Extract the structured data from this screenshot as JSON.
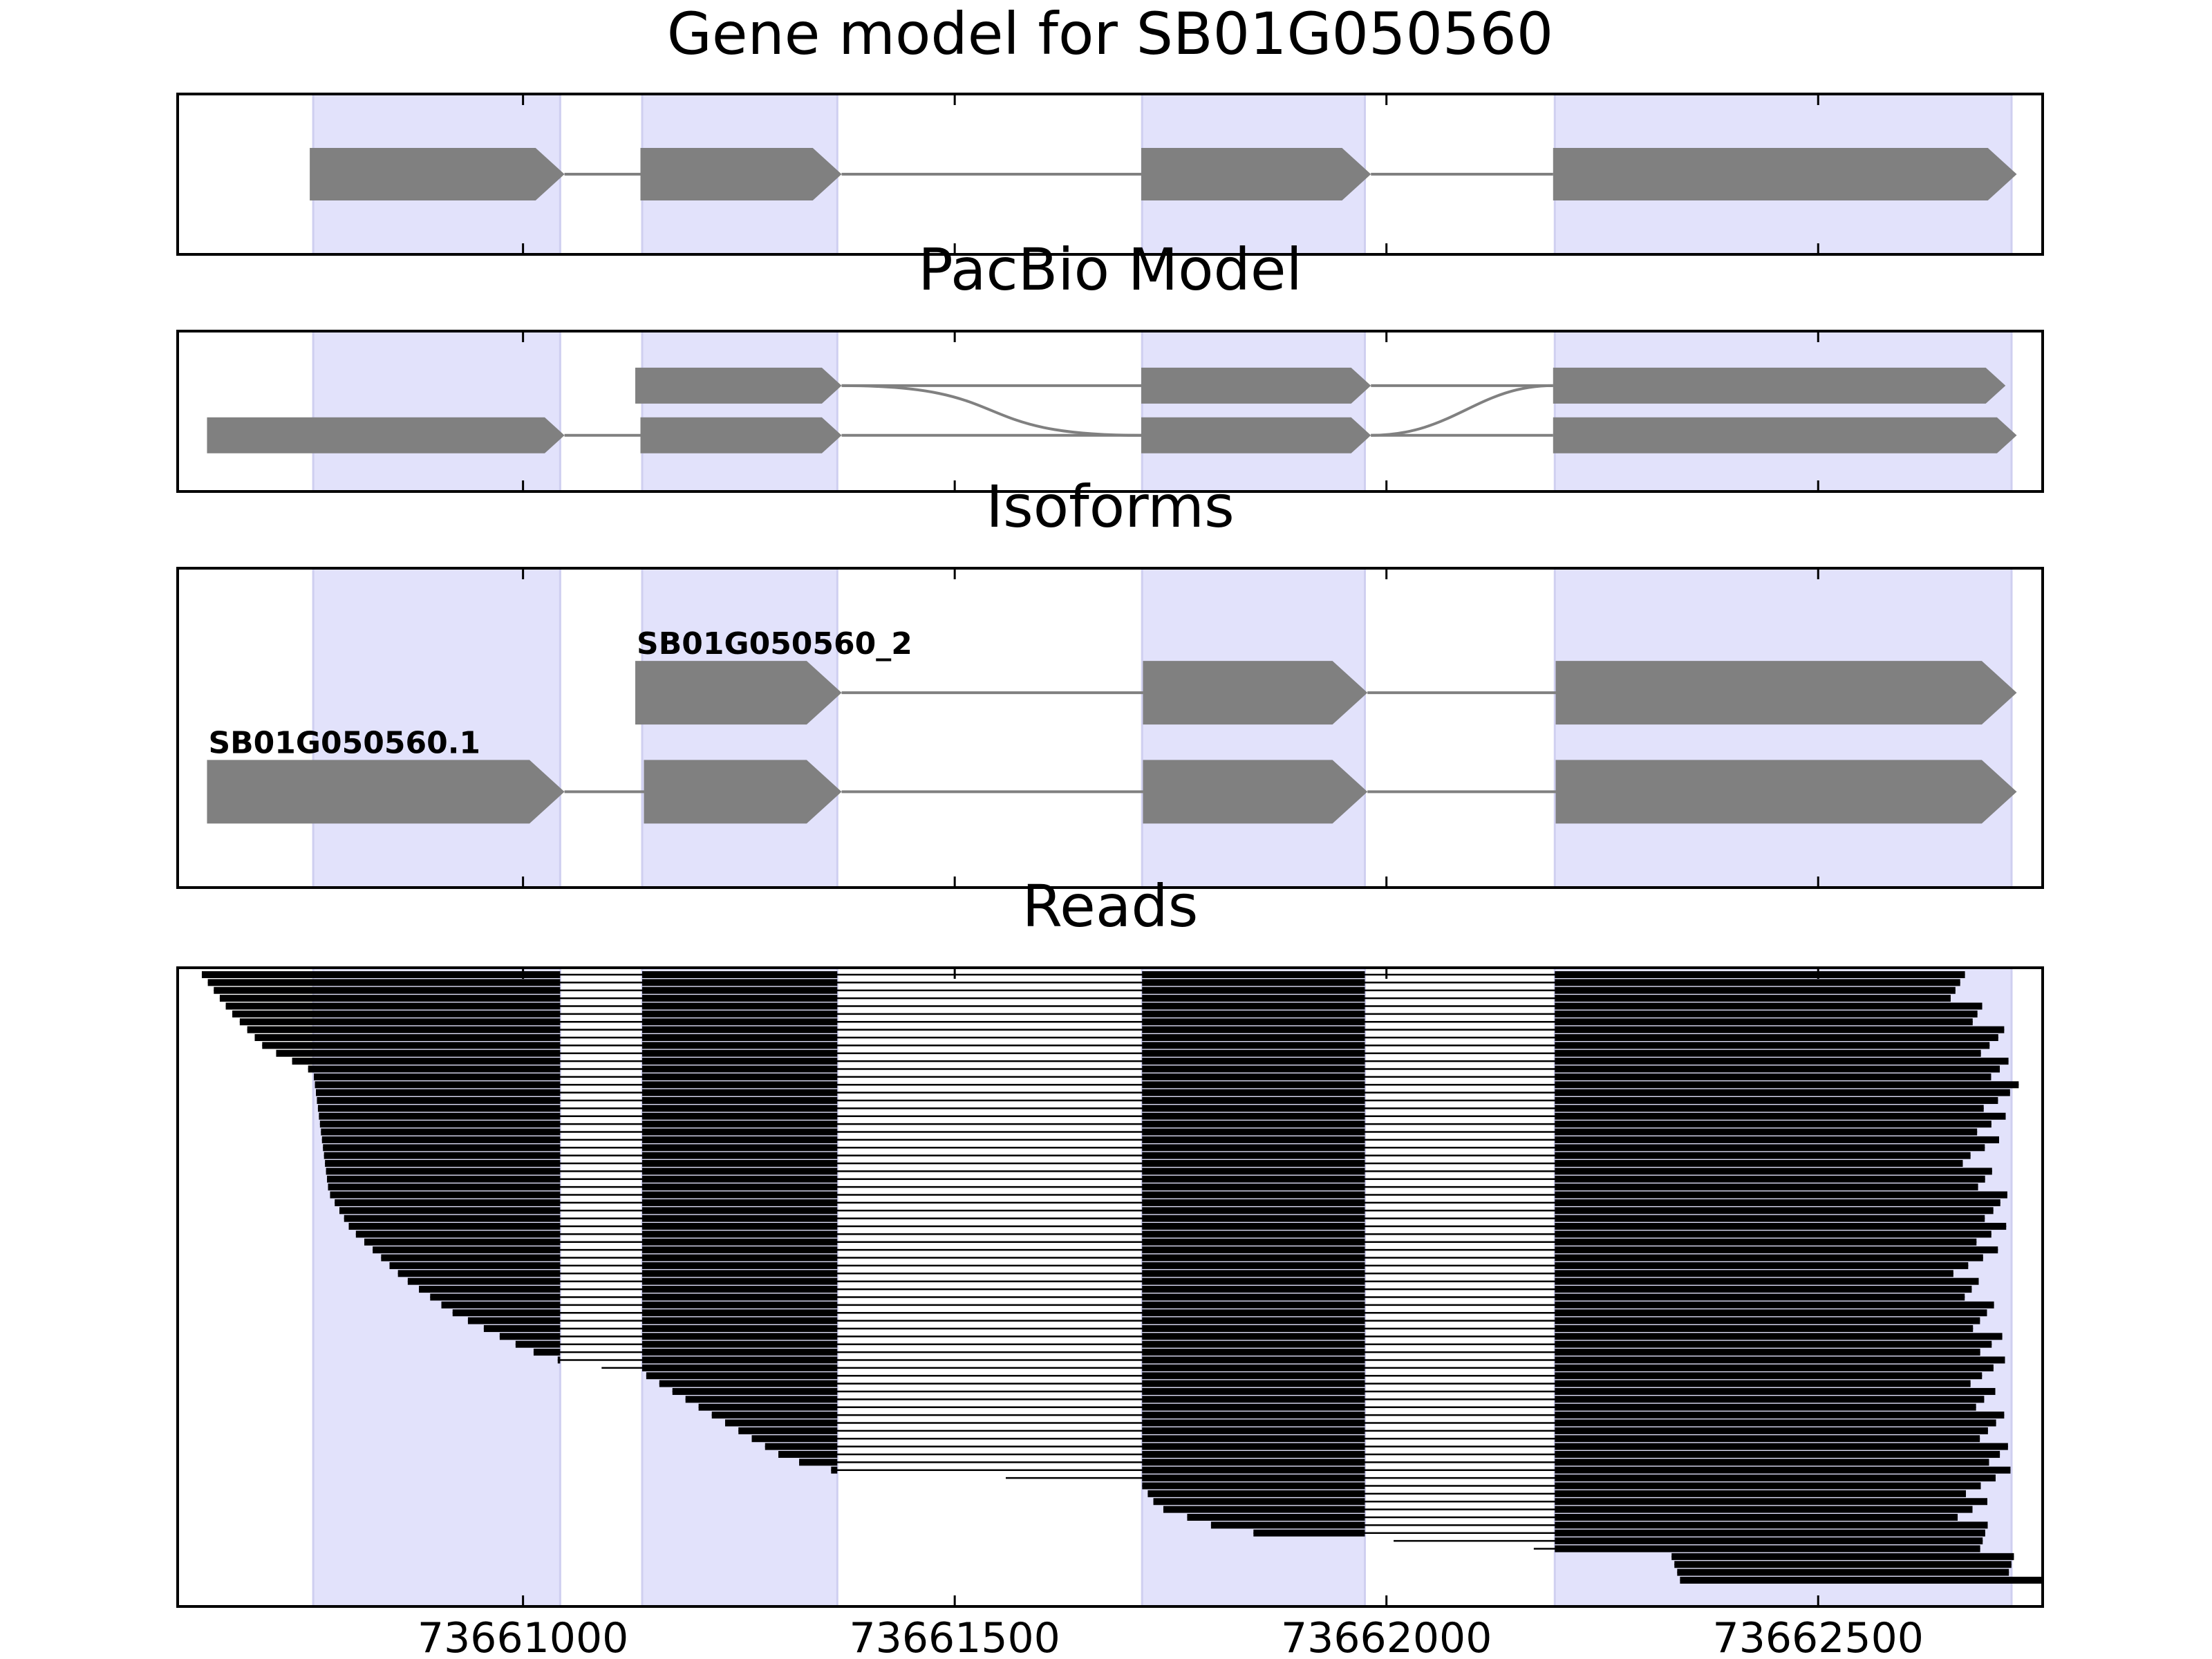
{
  "chart_data": {
    "type": "gene_track",
    "xlim": [
      73660600,
      73662760
    ],
    "x_ticks": [
      73661000,
      73661500,
      73662000,
      73662500
    ],
    "x_tick_labels": [
      "73661000",
      "73661500",
      "73662000",
      "73662500"
    ],
    "colors": {
      "exon_shade": "#e2e2fb",
      "exon_shade_edge": "#cfcff0",
      "feature_fill": "#808080",
      "intron_line": "#808080",
      "read_color": "#000000",
      "frame": "#000000"
    },
    "shaded_exons": [
      [
        73660757,
        73661043
      ],
      [
        73661138,
        73661364
      ],
      [
        73661717,
        73661975
      ],
      [
        73662195,
        73662724
      ]
    ],
    "panels": [
      {
        "title": "Gene model for SB01G050560",
        "rows": 1,
        "tracks": [
          {
            "label": "",
            "row": 0.5,
            "exons": [
              [
                73660753,
                73661048
              ],
              [
                73661136,
                73661369
              ],
              [
                73661716,
                73661982
              ],
              [
                73662193,
                73662730
              ]
            ]
          }
        ]
      },
      {
        "title": "PacBio Model",
        "rows": 2,
        "tracks": [
          {
            "label": "",
            "row": 0.34,
            "curved": true,
            "exons": [
              [
                73661130,
                73661369
              ],
              [
                73661716,
                73661982
              ],
              [
                73662193,
                73662717
              ]
            ]
          },
          {
            "label": "",
            "row": 0.65,
            "exons": [
              [
                73660634,
                73661048
              ],
              [
                73661136,
                73661369
              ],
              [
                73661716,
                73661982
              ],
              [
                73662193,
                73662730
              ]
            ]
          }
        ]
      },
      {
        "title": "Isoforms",
        "rows": 2,
        "tracks": [
          {
            "label": "SB01G050560_2",
            "row": 0.39,
            "exons": [
              [
                73661130,
                73661369
              ],
              [
                73661718,
                73661978
              ],
              [
                73662196,
                73662730
              ]
            ]
          },
          {
            "label": "SB01G050560.1",
            "row": 0.7,
            "exons": [
              [
                73660634,
                73661048
              ],
              [
                73661140,
                73661369
              ],
              [
                73661718,
                73661978
              ],
              [
                73662196,
                73662730
              ]
            ]
          }
        ]
      },
      {
        "title": "Reads",
        "reads": {
          "count": 78,
          "start_profile": [
            [
              0,
              73660628
            ],
            [
              0.06,
              73660660
            ],
            [
              0.12,
              73660700
            ],
            [
              0.16,
              73660757
            ],
            [
              0.36,
              73660775
            ],
            [
              0.42,
              73660800
            ],
            [
              0.5,
              73660860
            ],
            [
              0.56,
              73660920
            ],
            [
              0.62,
              73661005
            ],
            [
              0.64,
              73661048
            ],
            [
              0.66,
              73661140
            ],
            [
              0.72,
              73661210
            ],
            [
              0.8,
              73661305
            ],
            [
              0.82,
              73661362
            ],
            [
              0.84,
              73661715
            ],
            [
              0.88,
              73661735
            ],
            [
              0.92,
              73661820
            ],
            [
              0.95,
              73662195
            ],
            [
              0.96,
              73662330
            ],
            [
              1,
              73662340
            ]
          ],
          "end_profile": [
            [
              0,
              73662670
            ],
            [
              0.1,
              73662720
            ],
            [
              0.2,
              73662735
            ],
            [
              0.3,
              73662700
            ],
            [
              0.4,
              73662730
            ],
            [
              0.5,
              73662690
            ],
            [
              0.6,
              73662720
            ],
            [
              0.7,
              73662710
            ],
            [
              0.8,
              73662730
            ],
            [
              0.9,
              73662690
            ],
            [
              1,
              73662760
            ]
          ]
        }
      }
    ]
  }
}
